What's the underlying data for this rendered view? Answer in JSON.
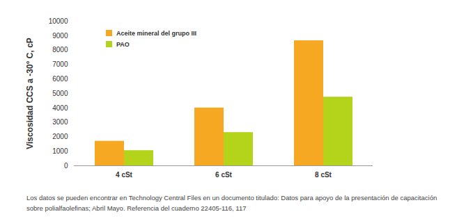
{
  "chart_data": {
    "type": "bar",
    "y_label": "Viscosidad CCS a -30° C, cP",
    "categories": [
      "4 cSt",
      "6 cSt",
      "8 cSt"
    ],
    "series": [
      {
        "name": "Aceite mineral del grupo III",
        "color": "#f7a823",
        "values": [
          1700,
          4000,
          8650
        ]
      },
      {
        "name": "PAO",
        "color": "#b3d41a",
        "values": [
          1050,
          2300,
          4750
        ]
      }
    ],
    "ylim": [
      0,
      10000
    ],
    "yticks": [
      0,
      1000,
      2000,
      3000,
      4000,
      5000,
      6000,
      7000,
      8000,
      9000,
      10000
    ],
    "grid": false,
    "legend": "top-left",
    "caption": "Los datos se pueden encontrar en Technology Central Files en un documento titulado: Datos para apoyo de la presentación de capacitación sobre polialfaolefinas; Abril Mayo. Referencia del cuaderno 22405-116, 117"
  }
}
